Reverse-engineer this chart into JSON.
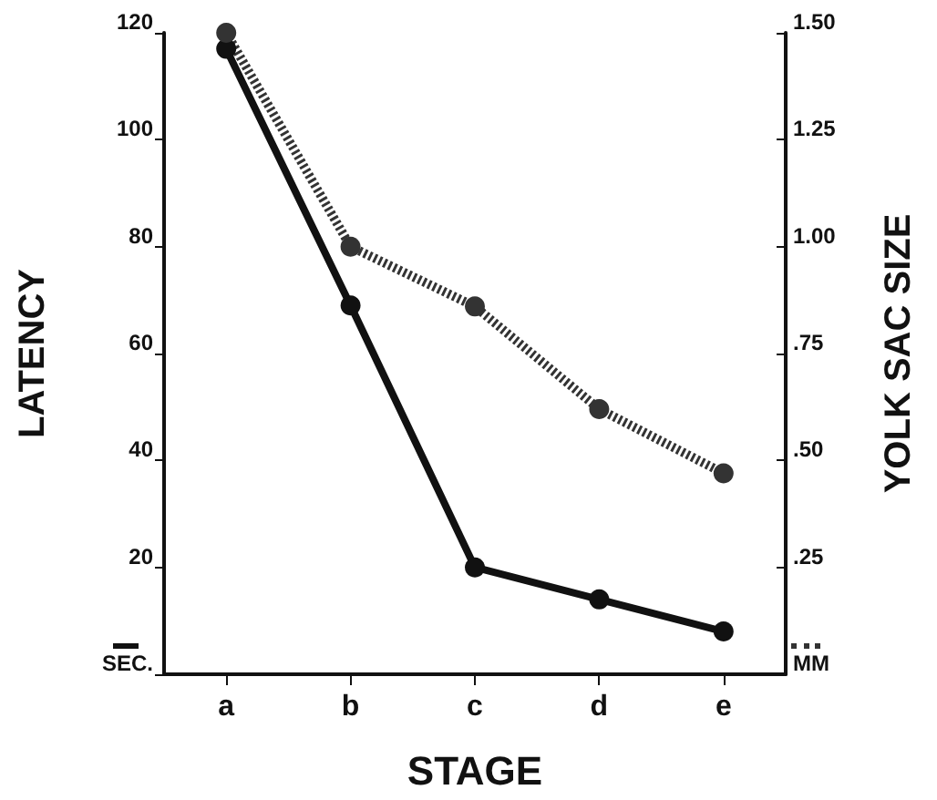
{
  "chart_data": {
    "type": "line",
    "xlabel": "STAGE",
    "ylabel": "LATENCY",
    "y2label": "YOLK SAC SIZE",
    "categories": [
      "a",
      "b",
      "c",
      "d",
      "e"
    ],
    "series": [
      {
        "color": "#111111",
        "values": [
          117,
          69,
          20,
          14,
          8
        ],
        "line_style": "solid"
      },
      {
        "color": "#333333",
        "values": [
          1.5,
          1.0,
          0.86,
          0.62,
          0.47
        ],
        "axis": "y2",
        "line_style": "dotted"
      }
    ],
    "ylim": [
      0,
      120
    ],
    "yticks": [
      {
        "value": 0,
        "label": "SEC."
      },
      20,
      40,
      60,
      80,
      100,
      120
    ],
    "y2lim": [
      0,
      1.5
    ],
    "y2ticks": [
      {
        "value": 0,
        "label": "MM"
      },
      {
        "value": 0.25,
        "label": ".25"
      },
      {
        "value": 0.5,
        "label": ".50"
      },
      {
        "value": 0.75,
        "label": ".75"
      },
      {
        "value": 1.0,
        "label": "1.00"
      },
      {
        "value": 1.25,
        "label": "1.25"
      },
      {
        "value": 1.5,
        "label": "1.50"
      }
    ],
    "marker": "circle",
    "grid": false
  }
}
